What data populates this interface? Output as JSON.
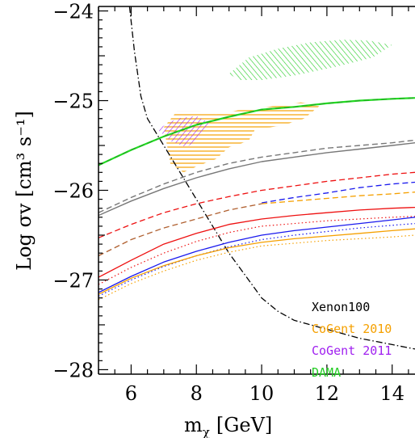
{
  "chart_data": {
    "type": "line",
    "xlabel": "m",
    "xlabel_sub": "χ",
    "xlabel_unit": "[GeV]",
    "ylabel": "Log σv  [cm³ s⁻¹]",
    "xlim": [
      5,
      14.7
    ],
    "ylim": [
      -28.05,
      -23.95
    ],
    "x_ticks": [
      6,
      8,
      10,
      12,
      14
    ],
    "y_ticks": [
      -24,
      -25,
      -26,
      -27,
      -28
    ],
    "x_tick_labels": [
      "6",
      "8",
      "10",
      "12",
      "14"
    ],
    "y_tick_labels": [
      "−24",
      "−25",
      "−26",
      "−27",
      "−28"
    ],
    "legend_position": "lower-right",
    "legend": [
      {
        "label": "Xenon100",
        "color": "#000000"
      },
      {
        "label": "CoGent 2010",
        "color": "#f5a000"
      },
      {
        "label": "CoGent 2011",
        "color": "#a020f0"
      },
      {
        "label": "DAMA",
        "color": "#22cc22"
      }
    ],
    "curves": [
      {
        "color": "#000000",
        "dash": "dashdot",
        "width": 1.3,
        "points": [
          [
            5.95,
            -23.95
          ],
          [
            6.1,
            -24.45
          ],
          [
            6.3,
            -24.95
          ],
          [
            6.5,
            -25.2
          ],
          [
            7,
            -25.5
          ],
          [
            7.5,
            -25.8
          ],
          [
            8,
            -26.1
          ],
          [
            8.5,
            -26.4
          ],
          [
            9,
            -26.7
          ],
          [
            9.5,
            -26.95
          ],
          [
            10,
            -27.2
          ],
          [
            10.5,
            -27.35
          ],
          [
            11,
            -27.45
          ],
          [
            12,
            -27.55
          ],
          [
            13,
            -27.65
          ],
          [
            14,
            -27.72
          ],
          [
            14.7,
            -27.77
          ]
        ]
      },
      {
        "color": "#22dd22",
        "dash": "solid",
        "width": 2.2,
        "points": [
          [
            5,
            -25.72
          ],
          [
            6,
            -25.55
          ],
          [
            7,
            -25.4
          ],
          [
            8,
            -25.27
          ],
          [
            9,
            -25.18
          ],
          [
            10,
            -25.1
          ],
          [
            11,
            -25.07
          ],
          [
            12,
            -25.03
          ],
          [
            13,
            -25.0
          ],
          [
            14,
            -24.98
          ],
          [
            14.7,
            -24.97
          ]
        ]
      },
      {
        "color": "#22aa22",
        "dash": "dashed",
        "width": 1.2,
        "points": [
          [
            5,
            -25.72
          ],
          [
            6,
            -25.55
          ],
          [
            7,
            -25.4
          ],
          [
            8,
            -25.27
          ],
          [
            9,
            -25.18
          ],
          [
            10,
            -25.1
          ],
          [
            11,
            -25.07
          ],
          [
            12,
            -25.03
          ],
          [
            13,
            -25.0
          ],
          [
            14,
            -24.98
          ],
          [
            14.7,
            -24.97
          ]
        ]
      },
      {
        "color": "#777777",
        "dash": "dashed",
        "width": 1.4,
        "points": [
          [
            5,
            -26.25
          ],
          [
            6,
            -26.08
          ],
          [
            7,
            -25.93
          ],
          [
            8,
            -25.8
          ],
          [
            9,
            -25.7
          ],
          [
            10,
            -25.63
          ],
          [
            11,
            -25.58
          ],
          [
            12,
            -25.53
          ],
          [
            13,
            -25.5
          ],
          [
            14,
            -25.47
          ],
          [
            14.7,
            -25.44
          ]
        ]
      },
      {
        "color": "#777777",
        "dash": "solid",
        "width": 1.4,
        "points": [
          [
            5,
            -26.28
          ],
          [
            6,
            -26.12
          ],
          [
            7,
            -25.98
          ],
          [
            8,
            -25.86
          ],
          [
            9,
            -25.76
          ],
          [
            10,
            -25.68
          ],
          [
            11,
            -25.63
          ],
          [
            12,
            -25.58
          ],
          [
            13,
            -25.54
          ],
          [
            14,
            -25.5
          ],
          [
            14.7,
            -25.47
          ]
        ]
      },
      {
        "color": "#ee1111",
        "dash": "dashed",
        "width": 1.3,
        "points": [
          [
            5,
            -26.53
          ],
          [
            6,
            -26.38
          ],
          [
            7,
            -26.25
          ],
          [
            8,
            -26.15
          ],
          [
            9,
            -26.07
          ],
          [
            10,
            -26.0
          ],
          [
            11,
            -25.95
          ],
          [
            12,
            -25.9
          ],
          [
            13,
            -25.86
          ],
          [
            14,
            -25.82
          ],
          [
            14.7,
            -25.8
          ]
        ]
      },
      {
        "color": "#1a1aee",
        "dash": "dashed",
        "width": 1.3,
        "points": [
          [
            10,
            -26.14
          ],
          [
            11,
            -26.08
          ],
          [
            12,
            -26.03
          ],
          [
            13,
            -25.97
          ],
          [
            14,
            -25.93
          ],
          [
            14.7,
            -25.91
          ]
        ]
      },
      {
        "color": "#f5a000",
        "dash": "dashed",
        "width": 1.3,
        "points": [
          [
            10,
            -26.15
          ],
          [
            11,
            -26.12
          ],
          [
            12,
            -26.09
          ],
          [
            13,
            -26.06
          ],
          [
            14,
            -26.04
          ],
          [
            14.7,
            -26.02
          ]
        ]
      },
      {
        "color": "#b06030",
        "dash": "dashed",
        "width": 1.3,
        "points": [
          [
            5,
            -26.73
          ],
          [
            6,
            -26.55
          ],
          [
            7,
            -26.42
          ],
          [
            8,
            -26.32
          ],
          [
            9,
            -26.22
          ],
          [
            10,
            -26.15
          ]
        ]
      },
      {
        "color": "#ee1111",
        "dash": "solid",
        "width": 1.3,
        "points": [
          [
            5,
            -26.97
          ],
          [
            6,
            -26.78
          ],
          [
            7,
            -26.6
          ],
          [
            8,
            -26.48
          ],
          [
            9,
            -26.38
          ],
          [
            10,
            -26.32
          ],
          [
            11,
            -26.28
          ],
          [
            12,
            -26.25
          ],
          [
            13,
            -26.22
          ],
          [
            14,
            -26.2
          ],
          [
            14.7,
            -26.19
          ]
        ]
      },
      {
        "color": "#ee1111",
        "dash": "dotted",
        "width": 1.2,
        "points": [
          [
            5,
            -27.05
          ],
          [
            6,
            -26.86
          ],
          [
            7,
            -26.7
          ],
          [
            8,
            -26.57
          ],
          [
            9,
            -26.47
          ],
          [
            10,
            -26.4
          ],
          [
            11,
            -26.37
          ],
          [
            12,
            -26.34
          ],
          [
            13,
            -26.32
          ],
          [
            14,
            -26.3
          ],
          [
            14.7,
            -26.29
          ]
        ]
      },
      {
        "color": "#1a1aee",
        "dash": "solid",
        "width": 1.3,
        "points": [
          [
            5,
            -27.14
          ],
          [
            6,
            -26.96
          ],
          [
            7,
            -26.8
          ],
          [
            8,
            -26.68
          ],
          [
            9,
            -26.58
          ],
          [
            10,
            -26.5
          ],
          [
            11,
            -26.45
          ],
          [
            12,
            -26.41
          ],
          [
            13,
            -26.37
          ],
          [
            14,
            -26.33
          ],
          [
            14.7,
            -26.3
          ]
        ]
      },
      {
        "color": "#1a1aee",
        "dash": "dotted",
        "width": 1.2,
        "points": [
          [
            5,
            -27.18
          ],
          [
            6,
            -27.0
          ],
          [
            7,
            -26.85
          ],
          [
            8,
            -26.73
          ],
          [
            9,
            -26.63
          ],
          [
            10,
            -26.55
          ],
          [
            11,
            -26.5
          ],
          [
            12,
            -26.46
          ],
          [
            13,
            -26.42
          ],
          [
            14,
            -26.39
          ],
          [
            14.7,
            -26.37
          ]
        ]
      },
      {
        "color": "#f5a000",
        "dash": "solid",
        "width": 1.3,
        "points": [
          [
            5,
            -27.16
          ],
          [
            6,
            -26.98
          ],
          [
            7,
            -26.84
          ],
          [
            8,
            -26.73
          ],
          [
            9,
            -26.64
          ],
          [
            10,
            -26.58
          ],
          [
            11,
            -26.54
          ],
          [
            12,
            -26.51
          ],
          [
            13,
            -26.48
          ],
          [
            14,
            -26.45
          ],
          [
            14.7,
            -26.43
          ]
        ]
      },
      {
        "color": "#f5a000",
        "dash": "dotted",
        "width": 1.2,
        "points": [
          [
            5,
            -27.22
          ],
          [
            6,
            -27.04
          ],
          [
            7,
            -26.9
          ],
          [
            8,
            -26.78
          ],
          [
            9,
            -26.69
          ],
          [
            10,
            -26.62
          ],
          [
            11,
            -26.59
          ],
          [
            12,
            -26.56
          ],
          [
            13,
            -26.54
          ],
          [
            14,
            -26.52
          ],
          [
            14.7,
            -26.5
          ]
        ]
      }
    ],
    "regions": [
      {
        "label": "DAMA",
        "color": "#22cc22",
        "hatch": "diagonal",
        "points": [
          [
            9.0,
            -24.7
          ],
          [
            9.6,
            -24.52
          ],
          [
            10.5,
            -24.42
          ],
          [
            11.5,
            -24.35
          ],
          [
            12.5,
            -24.32
          ],
          [
            13.3,
            -24.33
          ],
          [
            14.0,
            -24.38
          ],
          [
            13.4,
            -24.52
          ],
          [
            12.3,
            -24.62
          ],
          [
            11.0,
            -24.72
          ],
          [
            10.0,
            -24.77
          ],
          [
            9.3,
            -24.77
          ]
        ]
      },
      {
        "label": "CoGent 2010",
        "color": "#f5a000",
        "hatch": "horizontal",
        "points": [
          [
            7.0,
            -25.3
          ],
          [
            7.4,
            -25.12
          ],
          [
            8.1,
            -25.12
          ],
          [
            8.6,
            -25.15
          ],
          [
            9.4,
            -25.1
          ],
          [
            10.2,
            -25.07
          ],
          [
            11.2,
            -25.02
          ],
          [
            11.8,
            -25.05
          ],
          [
            11.3,
            -25.2
          ],
          [
            10.6,
            -25.28
          ],
          [
            9.8,
            -25.32
          ],
          [
            9.6,
            -25.45
          ],
          [
            9.0,
            -25.52
          ],
          [
            8.6,
            -25.65
          ],
          [
            8.1,
            -25.72
          ],
          [
            7.6,
            -25.8
          ],
          [
            7.2,
            -25.7
          ],
          [
            7.1,
            -25.5
          ]
        ]
      },
      {
        "label": "CoGent 2011",
        "color": "#a020f0",
        "hatch": "diagonal-reverse",
        "points": [
          [
            6.8,
            -25.32
          ],
          [
            7.4,
            -25.2
          ],
          [
            8.0,
            -25.17
          ],
          [
            8.4,
            -25.25
          ],
          [
            8.1,
            -25.42
          ],
          [
            7.7,
            -25.52
          ],
          [
            7.2,
            -25.45
          ]
        ]
      }
    ]
  }
}
